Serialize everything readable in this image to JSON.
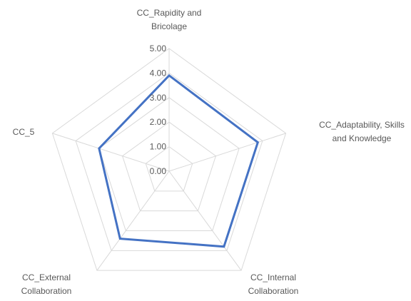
{
  "chart_data": {
    "type": "radar",
    "axes": [
      [
        "CC_Rapidity and",
        "Bricolage"
      ],
      [
        "CC_Adaptability, Skills",
        "and Knowledge"
      ],
      [
        "CC_Internal",
        "Collaboration"
      ],
      [
        "CC_External",
        "Collaboration"
      ],
      [
        "CC_5"
      ]
    ],
    "ticks": [
      "0.00",
      "1.00",
      "2.00",
      "3.00",
      "4.00",
      "5.00"
    ],
    "rmin": 0,
    "rmax": 5,
    "series": [
      {
        "values": [
          3.9,
          3.8,
          3.8,
          3.4,
          3.0
        ]
      }
    ],
    "colors": {
      "series": "#4472c4",
      "grid": "#d9d9d9",
      "text": "#595959"
    },
    "grid": true,
    "legend": "none"
  }
}
